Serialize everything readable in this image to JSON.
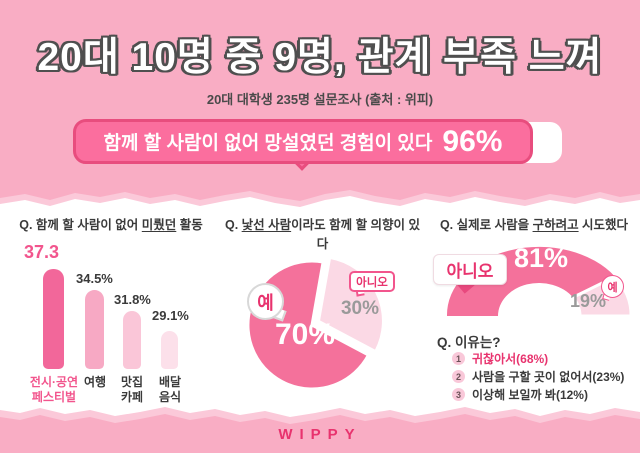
{
  "header": {
    "title": "20대 10명 중 9명, 관계 부족 느껴",
    "subtitle": "20대 대학생 235명 설문조사 (출처 : 위피)",
    "banner": {
      "text": "함께 할 사람이 없어 망설였던 경험이 있다",
      "value": "96%"
    }
  },
  "questions": {
    "q1": {
      "prefix": "Q. 함께 할 사람이 없어 ",
      "underline": "미뤘던",
      "suffix": " 활동"
    },
    "q2": {
      "prefix": "Q. ",
      "underline": "낯선 사람",
      "suffix": "이라도 함께 할 의향이 있다"
    },
    "q3": {
      "prefix": "Q. 실제로 사람을 ",
      "underline": "구하려고",
      "suffix": " 시도했다"
    }
  },
  "bar_chart": {
    "items": [
      {
        "value_label": "37.3",
        "label": "전시·공연\n페스티벌",
        "color": "#F2679A"
      },
      {
        "value_label": "34.5%",
        "label": "여행",
        "color": "#F7A9C4"
      },
      {
        "value_label": "31.8%",
        "label": "맛집\n카페",
        "color": "#FAC6D8"
      },
      {
        "value_label": "29.1%",
        "label": "배달\n음식",
        "color": "#FCE0EA"
      }
    ]
  },
  "pie_chart": {
    "yes_label": "예",
    "yes_value": "70%",
    "no_label": "아니오",
    "no_value": "30%"
  },
  "arch_chart": {
    "no_label": "아니오",
    "no_value": "81%",
    "yes_label": "예",
    "yes_value": "19%"
  },
  "reasons": {
    "title": "Q. 이유는?",
    "items": [
      {
        "num": "1",
        "text": "귀찮아서(68%)"
      },
      {
        "num": "2",
        "text": "사람을 구할 곳이 없어서(23%)"
      },
      {
        "num": "3",
        "text": "이상해 보일까 봐(12%)"
      }
    ]
  },
  "footer": {
    "logo": "WIPPY"
  },
  "colors": {
    "background": "#F9ADC4",
    "accent": "#E8336E",
    "banner_fill": "#FB6E9E",
    "banner_border": "#E84D7E",
    "pie_dark": "#F4719B",
    "pie_light": "#FBD9E5"
  },
  "chart_data": [
    {
      "type": "bar",
      "title": "함께 할 사람이 없어 미뤘던 활동",
      "categories": [
        "전시·공연 페스티벌",
        "여행",
        "맛집 카페",
        "배달 음식"
      ],
      "values": [
        37.3,
        34.5,
        31.8,
        29.1
      ],
      "unit": "%"
    },
    {
      "type": "pie",
      "title": "낯선 사람이라도 함께 할 의향이 있다",
      "categories": [
        "예",
        "아니오"
      ],
      "values": [
        70,
        30
      ],
      "unit": "%"
    },
    {
      "type": "pie",
      "style": "half-donut",
      "title": "실제로 사람을 구하려고 시도했다",
      "categories": [
        "아니오",
        "예"
      ],
      "values": [
        81,
        19
      ],
      "unit": "%"
    },
    {
      "type": "bar",
      "title": "이유는?",
      "categories": [
        "귀찮아서",
        "사람을 구할 곳이 없어서",
        "이상해 보일까 봐"
      ],
      "values": [
        68,
        23,
        12
      ],
      "unit": "%"
    },
    {
      "type": "bar",
      "title": "함께 할 사람이 없어 망설였던 경험이 있다",
      "categories": [
        "있다"
      ],
      "values": [
        96
      ],
      "unit": "%"
    }
  ]
}
